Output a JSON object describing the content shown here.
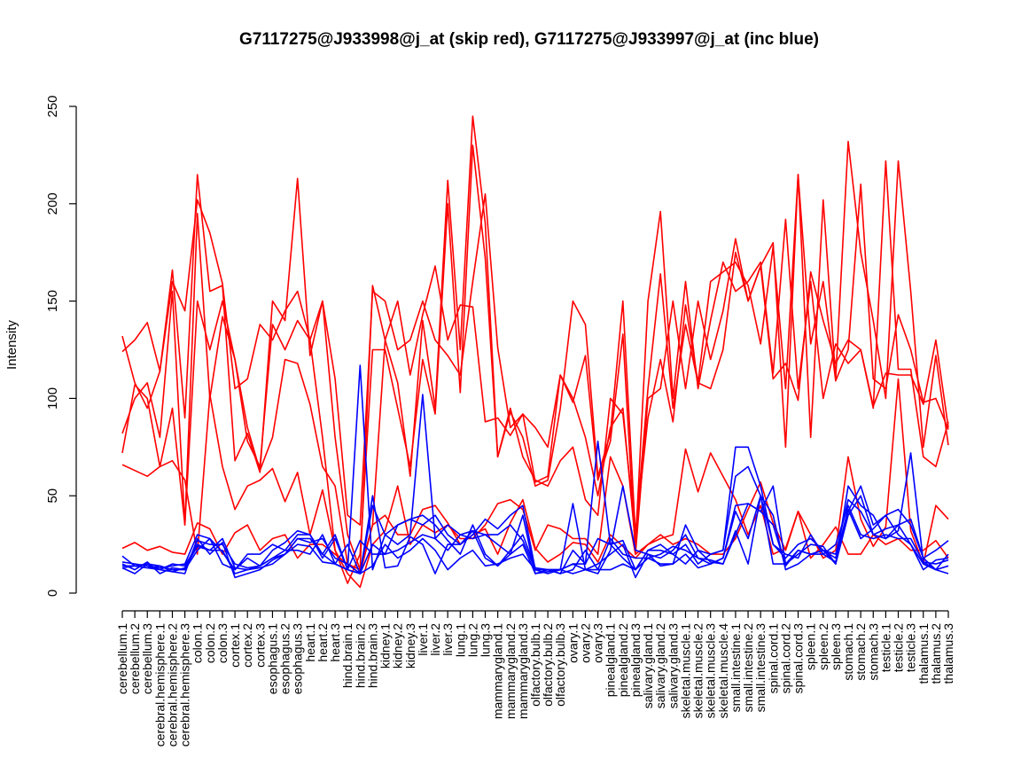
{
  "chart_data": {
    "type": "line",
    "title": "G7117275@J933998@j_at (skip red), G7117275@J933997@j_at (inc blue)",
    "xlabel": "",
    "ylabel": "Intensity",
    "ylim": [
      0,
      250
    ],
    "yticks": [
      0,
      50,
      100,
      150,
      200,
      250
    ],
    "grid": false,
    "legend": "none",
    "colors": {
      "skip": "#ff0000",
      "inc": "#0000ff"
    },
    "categories": [
      "cerebellum.1",
      "cerebellum.2",
      "cerebellum.3",
      "cerebral.hemisphere.1",
      "cerebral.hemisphere.2",
      "cerebral.hemisphere.3",
      "colon.1",
      "colon.2",
      "colon.3",
      "cortex.1",
      "cortex.2",
      "cortex.3",
      "esophagus.1",
      "esophagus.2",
      "esophagus.3",
      "heart.1",
      "heart.2",
      "heart.3",
      "hind.brain.1",
      "hind.brain.2",
      "hind.brain.3",
      "kidney.1",
      "kidney.2",
      "kidney.3",
      "liver.1",
      "liver.2",
      "liver.3",
      "lung.1",
      "lung.2",
      "lung.3",
      "mammarygland.1",
      "mammarygland.2",
      "mammarygland.3",
      "olfactory.bulb.1",
      "olfactory.bulb.2",
      "olfactory.bulb.3",
      "ovary.1",
      "ovary.2",
      "ovary.3",
      "pinealgland.1",
      "pinealgland.2",
      "pinealgland.3",
      "salivary.gland.1",
      "salivary.gland.2",
      "salivary.gland.3",
      "skeletal.muscle.1",
      "skeletal.muscle.2",
      "skeletal.muscle.3",
      "skeletal.muscle.4",
      "small.intestine.1",
      "small.intestine.2",
      "small.intestine.3",
      "spinal.cord.1",
      "spinal.cord.2",
      "spinal.cord.3",
      "spleen.1",
      "spleen.2",
      "spleen.3",
      "stomach.1",
      "stomach.2",
      "stomach.3",
      "testicle.1",
      "testicle.2",
      "testicle.3",
      "thalamus.1",
      "thalamus.2",
      "thalamus.3"
    ],
    "series": [
      {
        "group": "skip",
        "values": [
          132,
          108,
          95,
          114,
          166,
          90,
          215,
          155,
          158,
          68,
          82,
          62,
          150,
          140,
          213,
          122,
          150,
          80,
          30,
          12,
          158,
          130,
          108,
          60,
          140,
          95,
          212,
          125,
          245,
          190,
          70,
          93,
          80,
          55,
          58,
          95,
          150,
          138,
          60,
          82,
          150,
          30,
          105,
          164,
          95,
          138,
          108,
          105,
          125,
          175,
          150,
          168,
          180,
          75,
          215,
          80,
          202,
          110,
          232,
          175,
          140,
          100,
          222,
          155,
          75,
          122,
          76
        ],
        "color_key": "skip"
      },
      {
        "group": "skip",
        "values": [
          124,
          130,
          139,
          114,
          160,
          145,
          202,
          185,
          159,
          105,
          110,
          138,
          130,
          145,
          155,
          130,
          150,
          110,
          40,
          35,
          155,
          150,
          125,
          130,
          150,
          130,
          122,
          112,
          160,
          205,
          126,
          85,
          92,
          85,
          75,
          112,
          100,
          80,
          50,
          85,
          95,
          25,
          150,
          196,
          100,
          160,
          105,
          140,
          170,
          155,
          160,
          170,
          113,
          192,
          105,
          160,
          100,
          128,
          118,
          125,
          95,
          222,
          115,
          115,
          70,
          65,
          88
        ]
      },
      {
        "group": "skip",
        "values": [
          82,
          100,
          108,
          80,
          155,
          35,
          195,
          100,
          142,
          120,
          78,
          65,
          138,
          125,
          140,
          130,
          80,
          22,
          5,
          20,
          125,
          125,
          95,
          65,
          120,
          92,
          200,
          103,
          230,
          172,
          70,
          95,
          70,
          58,
          55,
          68,
          75,
          48,
          40,
          100,
          92,
          30,
          90,
          120,
          88,
          148,
          108,
          160,
          165,
          170,
          158,
          128,
          178,
          105,
          215,
          128,
          160,
          109,
          125,
          210,
          110,
          105,
          143,
          125,
          98,
          100,
          84
        ]
      },
      {
        "group": "skip",
        "values": [
          72,
          107,
          100,
          65,
          95,
          35,
          150,
          125,
          150,
          120,
          85,
          63,
          80,
          120,
          118,
          97,
          65,
          55,
          15,
          12,
          35,
          130,
          150,
          112,
          143,
          168,
          130,
          148,
          147,
          88,
          90,
          81,
          92,
          57,
          60,
          112,
          98,
          122,
          58,
          78,
          133,
          20,
          100,
          105,
          150,
          105,
          150,
          120,
          145,
          182,
          150,
          168,
          110,
          118,
          99,
          165,
          140,
          118,
          130,
          125,
          96,
          113,
          112,
          112,
          97,
          130,
          85
        ]
      },
      {
        "group": "skip",
        "values": [
          23,
          26,
          22,
          24,
          21,
          20,
          36,
          33,
          20,
          31,
          35,
          22,
          28,
          30,
          18,
          25,
          25,
          20,
          15,
          10,
          35,
          40,
          30,
          30,
          43,
          45,
          36,
          25,
          30,
          33,
          20,
          36,
          48,
          23,
          16,
          20,
          26,
          25,
          16,
          30,
          24,
          18,
          25,
          30,
          25,
          28,
          25,
          20,
          20,
          28,
          43,
          57,
          36,
          22,
          42,
          18,
          25,
          34,
          20,
          20,
          30,
          25,
          28,
          22,
          22,
          27,
          18
        ]
      },
      {
        "group": "skip",
        "values": [
          66,
          63,
          60,
          65,
          68,
          58,
          20,
          102,
          65,
          43,
          55,
          58,
          64,
          47,
          62,
          30,
          53,
          22,
          10,
          3,
          25,
          32,
          55,
          25,
          35,
          31,
          35,
          28,
          28,
          35,
          46,
          48,
          43,
          22,
          35,
          33,
          28,
          28,
          20,
          70,
          55,
          20,
          25,
          28,
          30,
          74,
          52,
          72,
          60,
          48,
          30,
          45,
          20,
          23,
          42,
          30,
          18,
          22,
          70,
          38,
          24,
          34,
          110,
          32,
          15,
          45,
          38
        ]
      },
      {
        "group": "inc",
        "values": [
          19,
          14,
          15,
          12,
          15,
          14,
          25,
          22,
          28,
          13,
          12,
          14,
          18,
          20,
          28,
          28,
          20,
          30,
          12,
          117,
          12,
          30,
          25,
          30,
          102,
          28,
          35,
          30,
          32,
          30,
          25,
          20,
          25,
          10,
          12,
          10,
          22,
          15,
          78,
          25,
          18,
          12,
          22,
          25,
          20,
          15,
          22,
          20,
          22,
          75,
          75,
          55,
          25,
          20,
          18,
          30,
          20,
          16,
          42,
          55,
          35,
          40,
          43,
          35,
          18,
          22,
          27
        ]
      },
      {
        "group": "inc",
        "values": [
          15,
          12,
          16,
          10,
          13,
          12,
          27,
          25,
          25,
          15,
          13,
          14,
          18,
          22,
          30,
          30,
          18,
          28,
          12,
          27,
          20,
          20,
          22,
          26,
          30,
          28,
          22,
          30,
          28,
          30,
          30,
          35,
          27,
          12,
          10,
          12,
          15,
          15,
          28,
          25,
          27,
          12,
          22,
          22,
          20,
          25,
          15,
          20,
          22,
          60,
          65,
          50,
          25,
          18,
          25,
          28,
          22,
          20,
          48,
          42,
          30,
          33,
          35,
          38,
          18,
          12,
          14
        ]
      },
      {
        "group": "inc",
        "values": [
          13,
          10,
          15,
          14,
          11,
          13,
          24,
          22,
          22,
          10,
          12,
          13,
          15,
          20,
          28,
          26,
          28,
          18,
          15,
          10,
          50,
          13,
          14,
          29,
          25,
          10,
          25,
          25,
          32,
          18,
          14,
          22,
          30,
          13,
          12,
          10,
          12,
          22,
          12,
          28,
          20,
          18,
          18,
          20,
          24,
          22,
          18,
          17,
          15,
          30,
          46,
          42,
          35,
          14,
          22,
          20,
          20,
          25,
          45,
          30,
          28,
          30,
          28,
          28,
          16,
          15,
          17
        ]
      },
      {
        "group": "inc",
        "values": [
          13,
          14,
          13,
          12,
          11,
          10,
          28,
          20,
          26,
          8,
          10,
          12,
          17,
          20,
          25,
          24,
          16,
          15,
          25,
          10,
          25,
          20,
          35,
          38,
          35,
          40,
          30,
          25,
          30,
          38,
          33,
          40,
          45,
          12,
          12,
          12,
          10,
          12,
          10,
          22,
          55,
          22,
          20,
          18,
          22,
          30,
          18,
          15,
          18,
          42,
          28,
          50,
          40,
          12,
          15,
          20,
          22,
          18,
          43,
          28,
          33,
          40,
          30,
          25,
          15,
          12,
          10
        ]
      },
      {
        "group": "inc",
        "values": [
          16,
          15,
          14,
          13,
          14,
          15,
          30,
          28,
          21,
          12,
          18,
          14,
          22,
          26,
          32,
          30,
          20,
          15,
          12,
          10,
          45,
          30,
          35,
          38,
          40,
          35,
          27,
          20,
          35,
          20,
          14,
          20,
          40,
          10,
          11,
          12,
          46,
          12,
          15,
          20,
          25,
          8,
          20,
          14,
          15,
          35,
          22,
          16,
          15,
          32,
          15,
          50,
          15,
          15,
          20,
          25,
          24,
          15,
          55,
          45,
          40,
          28,
          35,
          25,
          12,
          17,
          18
        ]
      },
      {
        "group": "inc",
        "values": [
          14,
          14,
          13,
          14,
          12,
          12,
          22,
          28,
          15,
          12,
          20,
          20,
          25,
          22,
          22,
          20,
          30,
          15,
          12,
          10,
          14,
          25,
          18,
          22,
          28,
          22,
          12,
          18,
          22,
          14,
          15,
          18,
          20,
          12,
          12,
          12,
          15,
          12,
          12,
          12,
          15,
          12,
          18,
          15,
          15,
          20,
          13,
          15,
          18,
          45,
          46,
          42,
          55,
          15,
          22,
          20,
          22,
          15,
          40,
          50,
          30,
          28,
          32,
          72,
          16,
          12,
          20
        ]
      }
    ]
  }
}
